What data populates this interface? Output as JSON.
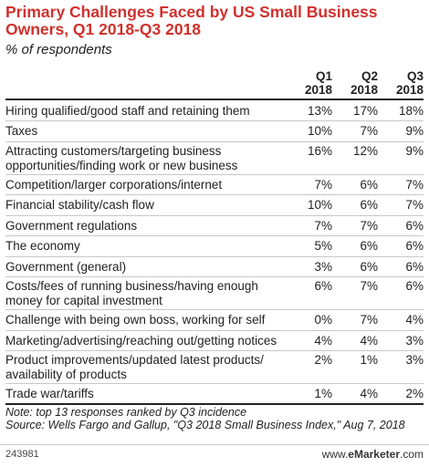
{
  "title": "Primary Challenges Faced by US Small Business Owners, Q1 2018-Q3 2018",
  "subtitle": "% of respondents",
  "chart_data": {
    "type": "table",
    "columns": [
      {
        "line1": "Q1",
        "line2": "2018"
      },
      {
        "line1": "Q2",
        "line2": "2018"
      },
      {
        "line1": "Q3",
        "line2": "2018"
      }
    ],
    "rows": [
      {
        "label": "Hiring qualified/good staff and retaining them",
        "values": [
          "13%",
          "17%",
          "18%"
        ]
      },
      {
        "label": "Taxes",
        "values": [
          "10%",
          "7%",
          "9%"
        ]
      },
      {
        "label": "Attracting customers/targeting business opportunities/finding work or new business",
        "values": [
          "16%",
          "12%",
          "9%"
        ]
      },
      {
        "label": "Competition/larger corporations/internet",
        "values": [
          "7%",
          "6%",
          "7%"
        ]
      },
      {
        "label": "Financial stability/cash flow",
        "values": [
          "10%",
          "6%",
          "7%"
        ]
      },
      {
        "label": "Government regulations",
        "values": [
          "7%",
          "7%",
          "6%"
        ]
      },
      {
        "label": "The economy",
        "values": [
          "5%",
          "6%",
          "6%"
        ]
      },
      {
        "label": "Government (general)",
        "values": [
          "3%",
          "6%",
          "6%"
        ]
      },
      {
        "label": "Costs/fees of running business/having enough money for capital investment",
        "values": [
          "6%",
          "7%",
          "6%"
        ]
      },
      {
        "label": "Challenge with being own boss, working for self",
        "values": [
          "0%",
          "7%",
          "4%"
        ]
      },
      {
        "label": "Marketing/advertising/reaching out/getting notices",
        "values": [
          "4%",
          "4%",
          "3%"
        ]
      },
      {
        "label": "Product improvements/updated latest products/ availability of products",
        "values": [
          "2%",
          "1%",
          "3%"
        ]
      },
      {
        "label": "Trade war/tariffs",
        "values": [
          "1%",
          "4%",
          "2%"
        ]
      }
    ]
  },
  "note": "Note: top 13 responses ranked by Q3 incidence",
  "source": "Source: Wells Fargo and Gallup, \"Q3 2018 Small Business Index,\" Aug 7, 2018",
  "footer": {
    "code": "243981",
    "brand_prefix": "www.",
    "brand_bold": "eMarketer",
    "brand_suffix": ".com"
  },
  "colors": {
    "title": "#d0312d",
    "rule": "#222222",
    "divider": "#c8c8c8"
  }
}
